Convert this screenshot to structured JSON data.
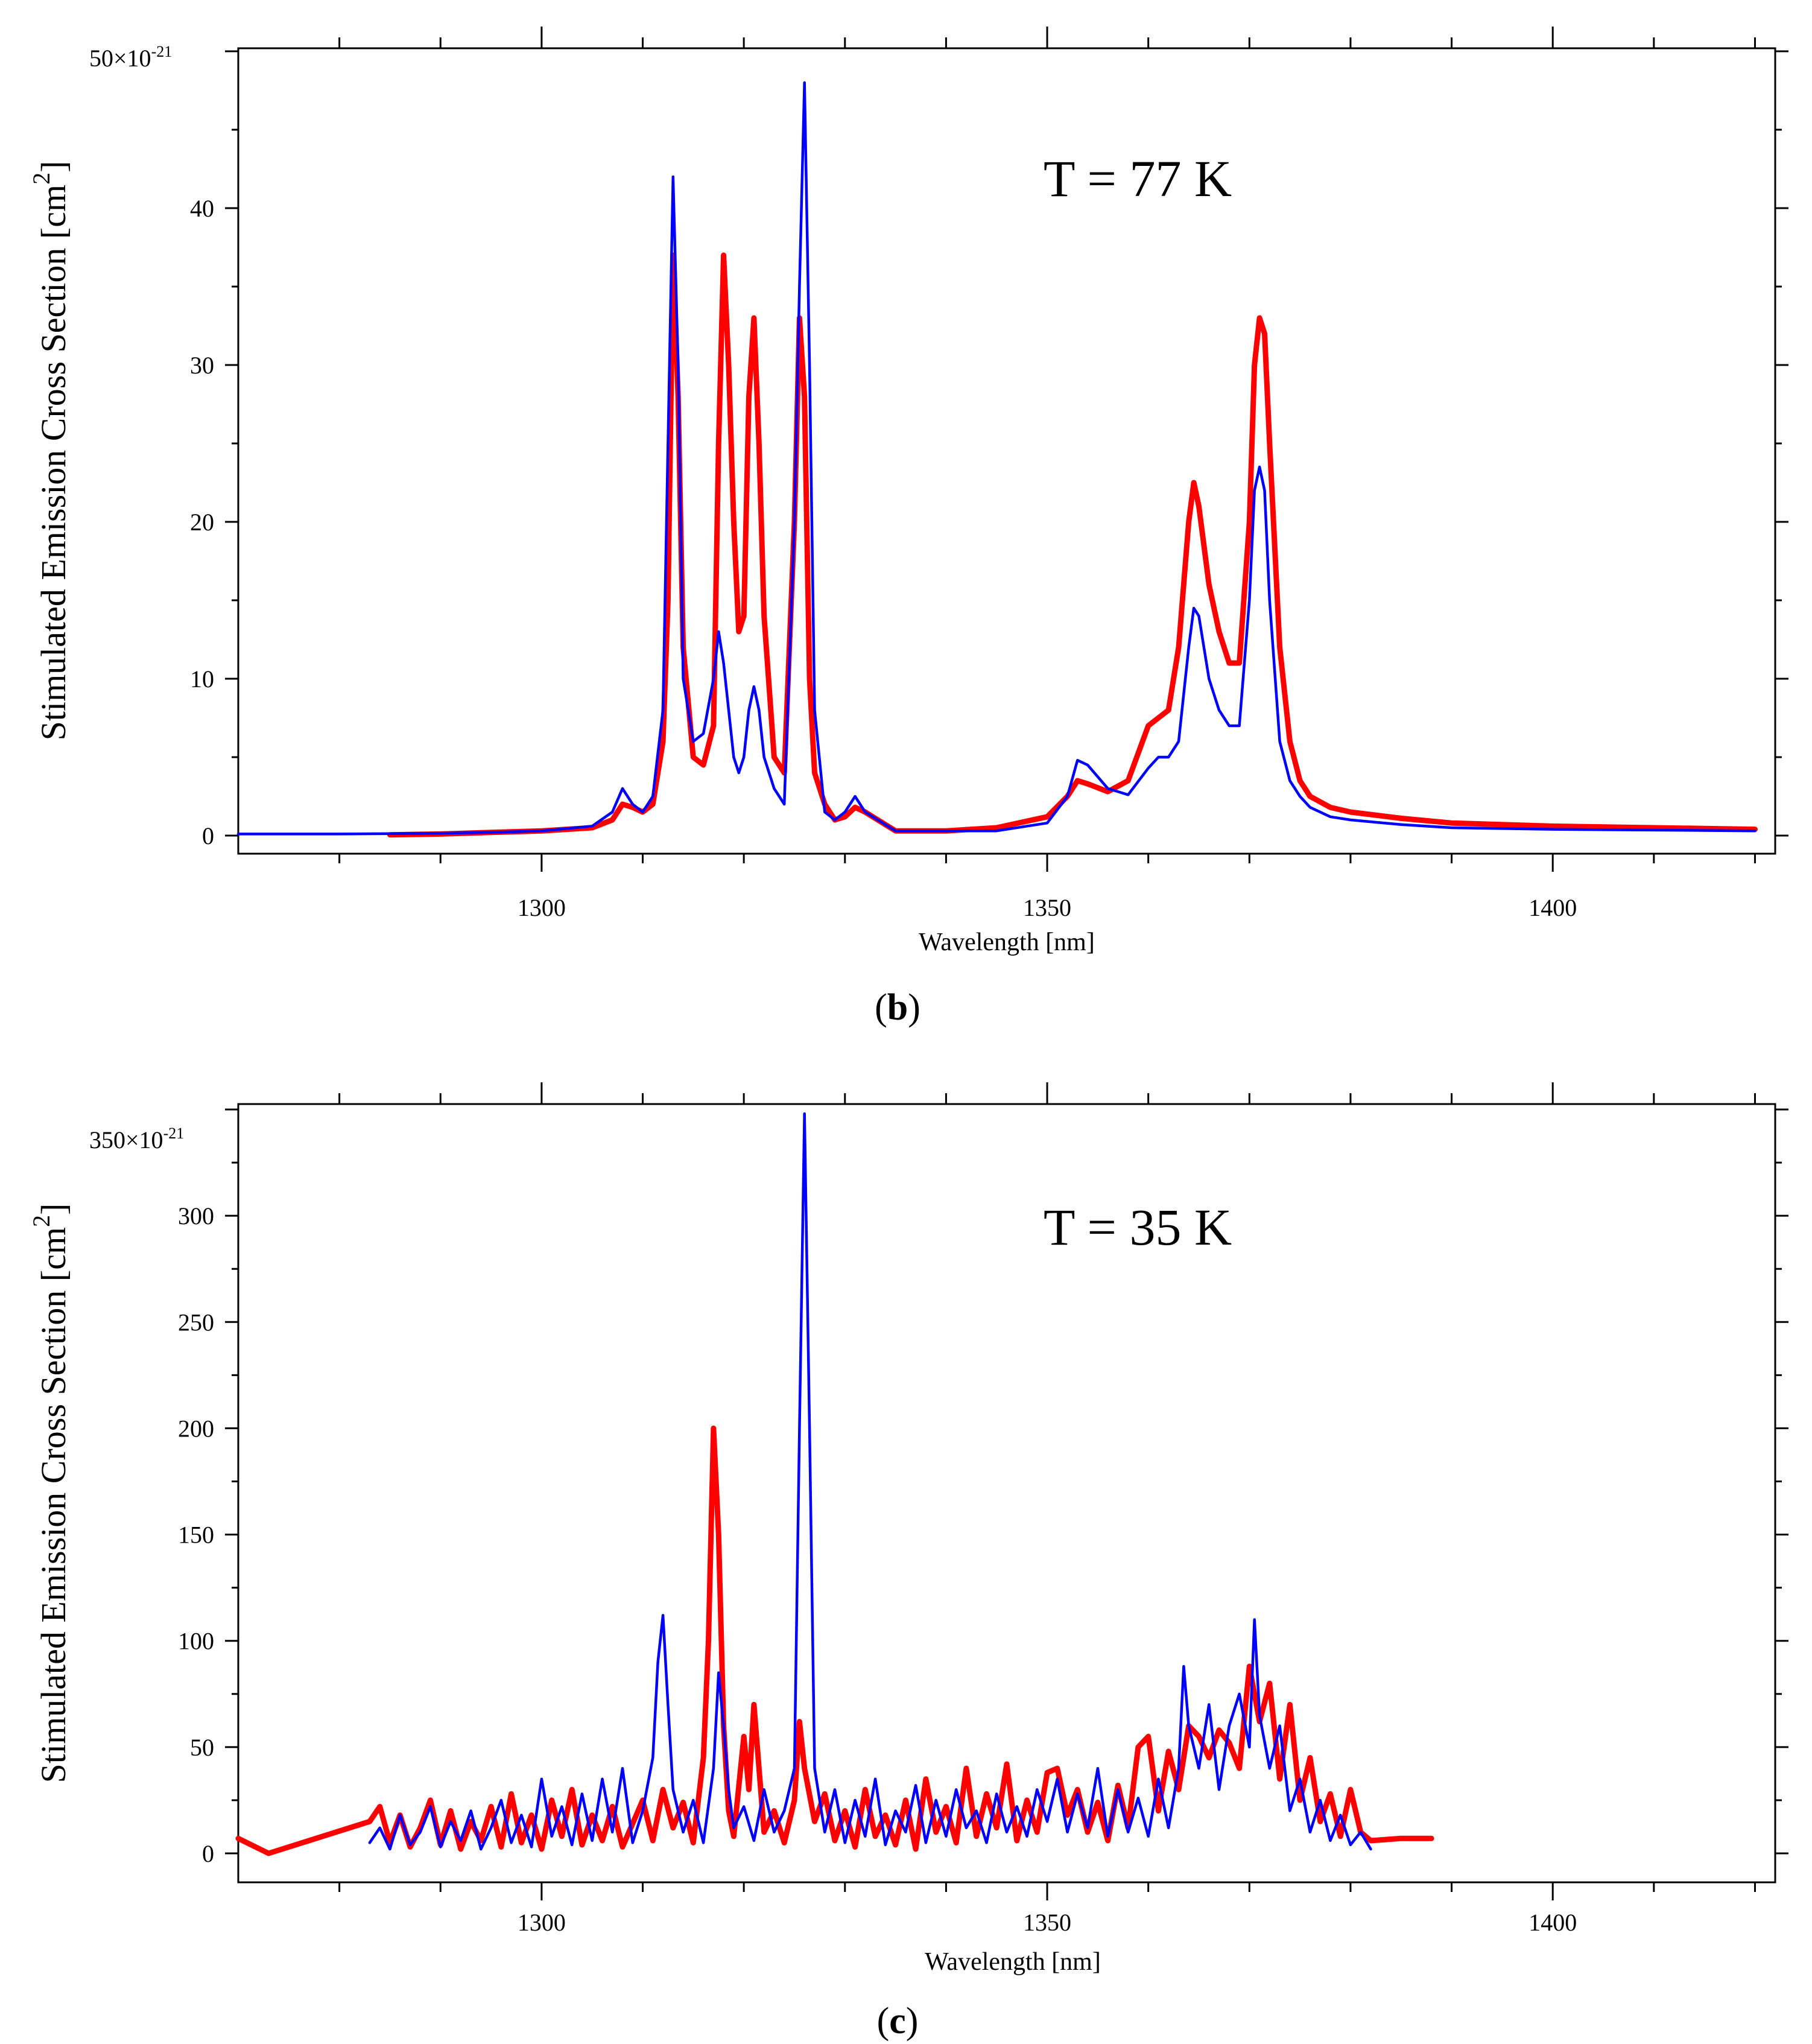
{
  "chart_data": [
    {
      "type": "line",
      "panel_label": "(b)",
      "panel_letter": "b",
      "annotation": "T = 77 K",
      "xlabel": "Wavelength [nm]",
      "ylabel": "Stimulated Emission Cross Section [cm",
      "ylabel_sup": "2",
      "ylabel_end": "]",
      "ytop_label": "50×10",
      "ytop_exp": "-21",
      "xlim": [
        1270,
        1422
      ],
      "ylim": [
        0,
        50
      ],
      "xticks": [
        1300,
        1350,
        1400
      ],
      "xtick_labels": [
        "1300",
        "1350",
        "1400"
      ],
      "yticks": [
        0,
        10,
        20,
        30,
        40
      ],
      "ytick_labels": [
        "0",
        "10",
        "20",
        "30",
        "40"
      ],
      "grid": false,
      "series": [
        {
          "name": "red",
          "color": "#ff0000",
          "x": [
            1285,
            1290,
            1295,
            1300,
            1305,
            1307,
            1308,
            1309,
            1310,
            1311,
            1312,
            1312.5,
            1313,
            1313.5,
            1314,
            1315,
            1316,
            1317,
            1317.5,
            1318,
            1318.5,
            1319,
            1319.5,
            1320,
            1320.5,
            1321,
            1321.5,
            1322,
            1323,
            1324,
            1325,
            1325.5,
            1326,
            1326.5,
            1327,
            1328,
            1329,
            1330,
            1331,
            1332,
            1335,
            1340,
            1345,
            1350,
            1352,
            1353,
            1354,
            1356,
            1358,
            1360,
            1361,
            1362,
            1363,
            1364,
            1364.5,
            1365,
            1366,
            1367,
            1368,
            1369,
            1370,
            1370.5,
            1371,
            1371.5,
            1372,
            1373,
            1374,
            1375,
            1376,
            1378,
            1380,
            1385,
            1390,
            1400,
            1410,
            1420
          ],
          "y": [
            0.05,
            0.1,
            0.2,
            0.3,
            0.5,
            1.0,
            2.0,
            1.8,
            1.5,
            2.0,
            6,
            15,
            37,
            28,
            12,
            5,
            4.5,
            7,
            25,
            37,
            30,
            20,
            13,
            14,
            28,
            33,
            25,
            14,
            5,
            4,
            20,
            33,
            28,
            10,
            4,
            2,
            1,
            1.2,
            1.8,
            1.5,
            0.3,
            0.3,
            0.5,
            1.2,
            2.5,
            3.5,
            3.3,
            2.8,
            3.5,
            7,
            7.5,
            8,
            12,
            20,
            22.5,
            21,
            16,
            13,
            11,
            11,
            20,
            30,
            33,
            32,
            25,
            12,
            6,
            3.5,
            2.5,
            1.8,
            1.5,
            1.1,
            0.8,
            0.6,
            0.5,
            0.4
          ]
        },
        {
          "name": "blue",
          "color": "#0000ff",
          "x": [
            1270,
            1280,
            1290,
            1295,
            1300,
            1305,
            1307,
            1308,
            1309,
            1310,
            1311,
            1312,
            1312.5,
            1313,
            1313.5,
            1314,
            1315,
            1316,
            1317,
            1317.5,
            1318,
            1318.5,
            1319,
            1319.5,
            1320,
            1320.5,
            1321,
            1321.5,
            1322,
            1323,
            1324,
            1325,
            1325.5,
            1326,
            1326.5,
            1327,
            1328,
            1329,
            1330,
            1331,
            1332,
            1335,
            1340,
            1345,
            1350,
            1352,
            1353,
            1354,
            1356,
            1358,
            1360,
            1361,
            1362,
            1363,
            1364,
            1364.5,
            1365,
            1366,
            1367,
            1368,
            1369,
            1370,
            1370.5,
            1371,
            1371.5,
            1372,
            1373,
            1374,
            1375,
            1376,
            1378,
            1380,
            1385,
            1390,
            1400,
            1410,
            1420
          ],
          "y": [
            0.1,
            0.1,
            0.15,
            0.2,
            0.3,
            0.6,
            1.5,
            3.0,
            2.0,
            1.5,
            2.5,
            8,
            25,
            42,
            30,
            10,
            6,
            6.5,
            10,
            13,
            11,
            8,
            5,
            4,
            5,
            8,
            9.5,
            8,
            5,
            3,
            2,
            20,
            35,
            48,
            30,
            8,
            1.5,
            1,
            1.5,
            2.5,
            1.5,
            0.3,
            0.3,
            0.3,
            0.8,
            2.5,
            4.8,
            4.5,
            3,
            2.6,
            4.3,
            5,
            5,
            6,
            12,
            14.5,
            14,
            10,
            8,
            7,
            7,
            15,
            22,
            23.5,
            22,
            15,
            6,
            3.5,
            2.5,
            1.8,
            1.2,
            1.0,
            0.7,
            0.5,
            0.4,
            0.35,
            0.3
          ]
        }
      ]
    },
    {
      "type": "line",
      "panel_label": "(c)",
      "panel_letter": "c",
      "annotation": "T = 35 K",
      "xlabel": "Wavelength [nm]",
      "ylabel": "Stimulated Emission Cross Section [cm",
      "ylabel_sup": "2",
      "ylabel_end": "]",
      "ytop_label": "350×10",
      "ytop_exp": "-21",
      "xlim": [
        1270,
        1422
      ],
      "ylim": [
        0,
        350
      ],
      "xticks": [
        1300,
        1350,
        1400
      ],
      "xtick_labels": [
        "1300",
        "1350",
        "1400"
      ],
      "yticks": [
        0,
        50,
        100,
        150,
        200,
        250,
        300
      ],
      "ytick_labels": [
        "0",
        "50",
        "100",
        "150",
        "200",
        "250",
        "300"
      ],
      "grid": false,
      "series": [
        {
          "name": "red",
          "color": "#ff0000",
          "x": [
            1270,
            1273,
            1283,
            1284,
            1285,
            1286,
            1287,
            1288,
            1289,
            1290,
            1291,
            1292,
            1293,
            1294,
            1295,
            1296,
            1297,
            1298,
            1299,
            1300,
            1301,
            1302,
            1303,
            1304,
            1305,
            1306,
            1307,
            1308,
            1309,
            1310,
            1311,
            1312,
            1313,
            1314,
            1315,
            1316,
            1316.5,
            1317,
            1317.5,
            1318,
            1318.5,
            1319,
            1320,
            1320.5,
            1321,
            1321.5,
            1322,
            1323,
            1324,
            1325,
            1325.5,
            1326,
            1327,
            1328,
            1329,
            1330,
            1331,
            1332,
            1333,
            1334,
            1335,
            1336,
            1337,
            1338,
            1339,
            1340,
            1341,
            1342,
            1343,
            1344,
            1345,
            1346,
            1347,
            1348,
            1349,
            1350,
            1351,
            1352,
            1353,
            1354,
            1355,
            1356,
            1357,
            1358,
            1359,
            1360,
            1361,
            1362,
            1363,
            1364,
            1365,
            1366,
            1367,
            1368,
            1369,
            1370,
            1371,
            1372,
            1373,
            1374,
            1375,
            1376,
            1377,
            1378,
            1379,
            1380,
            1381,
            1382,
            1385,
            1388
          ],
          "y": [
            7,
            0,
            15,
            22,
            5,
            18,
            3,
            12,
            25,
            4,
            20,
            2,
            15,
            6,
            22,
            3,
            28,
            5,
            18,
            2,
            25,
            8,
            30,
            4,
            18,
            6,
            22,
            3,
            14,
            25,
            6,
            30,
            12,
            24,
            5,
            45,
            100,
            200,
            150,
            60,
            20,
            8,
            55,
            30,
            70,
            40,
            10,
            20,
            5,
            25,
            62,
            40,
            15,
            28,
            6,
            20,
            3,
            30,
            8,
            18,
            4,
            25,
            2,
            35,
            10,
            22,
            5,
            40,
            8,
            28,
            12,
            42,
            6,
            25,
            10,
            38,
            40,
            18,
            30,
            10,
            24,
            6,
            32,
            12,
            50,
            55,
            20,
            48,
            30,
            60,
            55,
            45,
            58,
            52,
            40,
            88,
            62,
            80,
            35,
            70,
            25,
            45,
            15,
            28,
            8,
            30,
            10,
            6,
            7,
            7
          ]
        },
        {
          "name": "blue",
          "color": "#0000ff",
          "x": [
            1283,
            1284,
            1285,
            1286,
            1287,
            1288,
            1289,
            1290,
            1291,
            1292,
            1293,
            1294,
            1295,
            1296,
            1297,
            1298,
            1299,
            1300,
            1301,
            1302,
            1303,
            1304,
            1305,
            1306,
            1307,
            1308,
            1309,
            1310,
            1311,
            1311.5,
            1312,
            1312.5,
            1313,
            1314,
            1315,
            1316,
            1317,
            1317.5,
            1318,
            1318.5,
            1319,
            1320,
            1321,
            1322,
            1323,
            1324,
            1325,
            1325.5,
            1326,
            1326.5,
            1327,
            1328,
            1329,
            1330,
            1331,
            1332,
            1333,
            1334,
            1335,
            1336,
            1337,
            1338,
            1339,
            1340,
            1341,
            1342,
            1343,
            1344,
            1345,
            1346,
            1347,
            1348,
            1349,
            1350,
            1351,
            1352,
            1353,
            1354,
            1355,
            1356,
            1357,
            1358,
            1359,
            1360,
            1361,
            1362,
            1363,
            1363.5,
            1364,
            1365,
            1366,
            1367,
            1368,
            1369,
            1370,
            1370.5,
            1371,
            1372,
            1373,
            1374,
            1375,
            1376,
            1377,
            1378,
            1379,
            1380,
            1381,
            1382
          ],
          "y": [
            5,
            12,
            2,
            18,
            4,
            10,
            22,
            3,
            15,
            6,
            20,
            2,
            12,
            25,
            5,
            18,
            3,
            35,
            8,
            22,
            4,
            28,
            6,
            35,
            10,
            40,
            5,
            20,
            45,
            90,
            112,
            70,
            30,
            10,
            25,
            5,
            40,
            85,
            60,
            30,
            12,
            22,
            6,
            30,
            10,
            20,
            40,
            200,
            348,
            200,
            40,
            10,
            30,
            5,
            25,
            8,
            35,
            4,
            20,
            10,
            32,
            5,
            25,
            8,
            30,
            12,
            20,
            5,
            28,
            10,
            22,
            8,
            30,
            15,
            35,
            10,
            28,
            12,
            40,
            8,
            30,
            10,
            26,
            8,
            35,
            12,
            40,
            88,
            60,
            40,
            70,
            30,
            60,
            75,
            50,
            110,
            65,
            40,
            60,
            20,
            35,
            10,
            25,
            6,
            18,
            4,
            10,
            2
          ]
        }
      ]
    }
  ]
}
